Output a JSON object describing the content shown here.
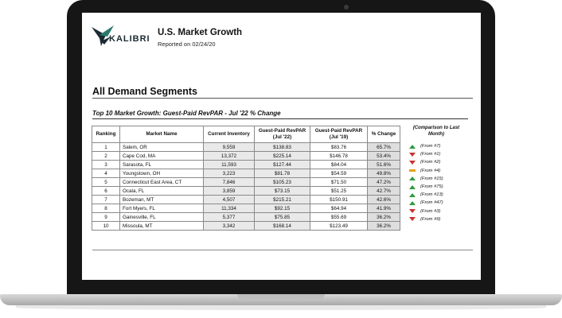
{
  "header": {
    "logo_text": "KALIBRI",
    "title": "U.S. Market Growth",
    "reported": "Reported on 02/24/20"
  },
  "section": {
    "title": "All Demand Segments",
    "table_title": "Top 10 Market Growth: Guest-Paid RevPAR - Jul '22 % Change"
  },
  "columns": {
    "ranking": "Ranking",
    "market": "Market Name",
    "inventory": "Current Inventory",
    "jul22_a": "Guest-Paid RevPAR",
    "jul22_b": "(Jul '22)",
    "jul19_a": "Guest-Paid RevPAR",
    "jul19_b": "(Jul '19)",
    "change": "% Change",
    "comparison": "(Comparison to Last Month)"
  },
  "rows": [
    {
      "rank": "1",
      "market": "Salem, OR",
      "inventory": "9,559",
      "jul22": "$138.83",
      "jul19": "$83.76",
      "change": "65.7%",
      "trend": "up",
      "cmp": "(From #7)"
    },
    {
      "rank": "2",
      "market": "Cape Cod, MA",
      "inventory": "13,372",
      "jul22": "$225.14",
      "jul19": "$146.78",
      "change": "53.4%",
      "trend": "down",
      "cmp": "(From #1)"
    },
    {
      "rank": "3",
      "market": "Sarasota, FL",
      "inventory": "11,593",
      "jul22": "$127.44",
      "jul19": "$84.04",
      "change": "51.6%",
      "trend": "down",
      "cmp": "(From #2)"
    },
    {
      "rank": "4",
      "market": "Youngstown, OH",
      "inventory": "3,223",
      "jul22": "$81.78",
      "jul19": "$54.59",
      "change": "49.8%",
      "trend": "flat",
      "cmp": "(From #4)"
    },
    {
      "rank": "5",
      "market": "Connecticut East Area, CT",
      "inventory": "7,846",
      "jul22": "$105.23",
      "jul19": "$71.50",
      "change": "47.2%",
      "trend": "up",
      "cmp": "(From #15)"
    },
    {
      "rank": "6",
      "market": "Ocala, FL",
      "inventory": "3,859",
      "jul22": "$73.15",
      "jul19": "$51.25",
      "change": "42.7%",
      "trend": "up",
      "cmp": "(From #75)"
    },
    {
      "rank": "7",
      "market": "Bozeman, MT",
      "inventory": "4,507",
      "jul22": "$215.21",
      "jul19": "$150.91",
      "change": "42.6%",
      "trend": "up",
      "cmp": "(From #13)"
    },
    {
      "rank": "8",
      "market": "Fort Myers, FL",
      "inventory": "11,334",
      "jul22": "$92.15",
      "jul19": "$64.94",
      "change": "41.9%",
      "trend": "up",
      "cmp": "(From #47)"
    },
    {
      "rank": "9",
      "market": "Gainesville, FL",
      "inventory": "5,377",
      "jul22": "$75.85",
      "jul19": "$55.69",
      "change": "36.2%",
      "trend": "down",
      "cmp": "(From #3)"
    },
    {
      "rank": "10",
      "market": "Missoula, MT",
      "inventory": "3,342",
      "jul22": "$168.14",
      "jul19": "$123.49",
      "change": "36.2%",
      "trend": "down",
      "cmp": "(From #9)"
    }
  ],
  "colors": {
    "up": "#2e9a3f",
    "down": "#c8322e",
    "flat": "#e8a020"
  }
}
